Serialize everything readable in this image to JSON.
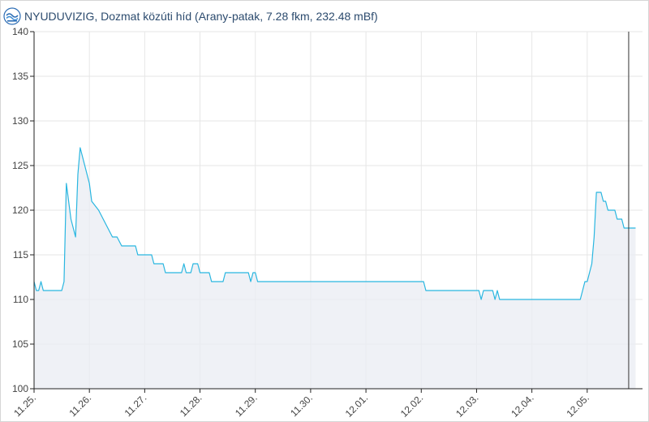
{
  "header": {
    "title": "NYUDUVIZIG, Dozmat közúti híd (Arany-patak, 7.28 fkm, 232.48 mBf)",
    "logo_icon": "water-directorate-logo-icon"
  },
  "colors": {
    "line": "#29b6e0",
    "area": "#e9ecf3",
    "grid": "#e6e6e6",
    "axis": "#222222",
    "cursor": "#333333",
    "title": "#2c4b6e"
  },
  "chart_data": {
    "type": "area",
    "title": "",
    "xlabel": "",
    "ylabel": "",
    "ylim": [
      100,
      140
    ],
    "yticks": [
      100,
      105,
      110,
      115,
      120,
      125,
      130,
      135,
      140
    ],
    "xlim": [
      "11.25. 00:00",
      "12.05. 24:00"
    ],
    "xticks": [
      "11.25.",
      "11.26.",
      "11.27.",
      "11.28.",
      "11.29.",
      "11.30.",
      "12.01.",
      "12.02.",
      "12.03.",
      "12.04.",
      "12.05."
    ],
    "grid": true,
    "legend": "none",
    "cursor_x": "12.05. 18:00",
    "series": [
      {
        "values": [
          [
            "11.25. 00:00",
            112
          ],
          [
            "11.25. 01:00",
            111
          ],
          [
            "11.25. 02:00",
            111
          ],
          [
            "11.25. 03:00",
            112
          ],
          [
            "11.25. 04:00",
            111
          ],
          [
            "11.25. 12:00",
            111
          ],
          [
            "11.25. 13:00",
            112
          ],
          [
            "11.25. 14:00",
            123
          ],
          [
            "11.25. 16:00",
            119
          ],
          [
            "11.25. 18:00",
            117
          ],
          [
            "11.25. 19:00",
            124
          ],
          [
            "11.25. 20:00",
            127
          ],
          [
            "11.25. 21:00",
            126
          ],
          [
            "11.25. 23:00",
            124
          ],
          [
            "11.26. 00:00",
            123
          ],
          [
            "11.26. 01:00",
            121
          ],
          [
            "11.26. 04:00",
            120
          ],
          [
            "11.26. 06:00",
            119
          ],
          [
            "11.26. 08:00",
            118
          ],
          [
            "11.26. 10:00",
            117
          ],
          [
            "11.26. 12:00",
            117
          ],
          [
            "11.26. 14:00",
            116
          ],
          [
            "11.26. 20:00",
            116
          ],
          [
            "11.26. 21:00",
            115
          ],
          [
            "11.27. 03:00",
            115
          ],
          [
            "11.27. 04:00",
            114
          ],
          [
            "11.27. 08:00",
            114
          ],
          [
            "11.27. 09:00",
            113
          ],
          [
            "11.27. 16:00",
            113
          ],
          [
            "11.27. 17:00",
            114
          ],
          [
            "11.27. 18:00",
            113
          ],
          [
            "11.27. 20:00",
            113
          ],
          [
            "11.27. 21:00",
            114
          ],
          [
            "11.27. 23:00",
            114
          ],
          [
            "11.28. 00:00",
            113
          ],
          [
            "11.28. 04:00",
            113
          ],
          [
            "11.28. 05:00",
            112
          ],
          [
            "11.28. 10:00",
            112
          ],
          [
            "11.28. 11:00",
            113
          ],
          [
            "11.28. 21:00",
            113
          ],
          [
            "11.28. 22:00",
            112
          ],
          [
            "11.28. 23:00",
            113
          ],
          [
            "11.29. 00:00",
            113
          ],
          [
            "11.29. 01:00",
            112
          ],
          [
            "12.02. 01:00",
            112
          ],
          [
            "12.02. 02:00",
            111
          ],
          [
            "12.03. 01:00",
            111
          ],
          [
            "12.03. 02:00",
            110
          ],
          [
            "12.03. 03:00",
            111
          ],
          [
            "12.03. 07:00",
            111
          ],
          [
            "12.03. 08:00",
            110
          ],
          [
            "12.03. 09:00",
            111
          ],
          [
            "12.03. 10:00",
            110
          ],
          [
            "12.04. 21:00",
            110
          ],
          [
            "12.04. 22:00",
            111
          ],
          [
            "12.04. 23:00",
            112
          ],
          [
            "12.05. 00:00",
            112
          ],
          [
            "12.05. 02:00",
            114
          ],
          [
            "12.05. 03:00",
            117
          ],
          [
            "12.05. 04:00",
            122
          ],
          [
            "12.05. 06:00",
            122
          ],
          [
            "12.05. 07:00",
            121
          ],
          [
            "12.05. 08:00",
            121
          ],
          [
            "12.05. 09:00",
            120
          ],
          [
            "12.05. 12:00",
            120
          ],
          [
            "12.05. 13:00",
            119
          ],
          [
            "12.05. 15:00",
            119
          ],
          [
            "12.05. 16:00",
            118
          ],
          [
            "12.05. 21:00",
            118
          ]
        ]
      }
    ]
  }
}
